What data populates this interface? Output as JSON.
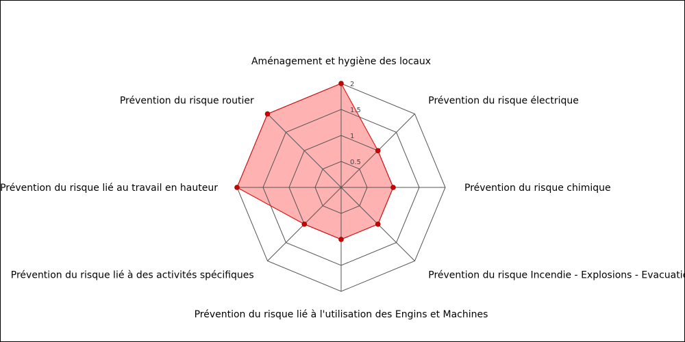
{
  "chart_data": {
    "type": "radar",
    "axes": [
      "Aménagement et hygiène des locaux",
      "Prévention du risque électrique",
      "Prévention du risque chimique",
      "Prévention du risque Incendie - Explosions - Evacuation",
      "Prévention du risque lié à l'utilisation des Engins et Machines",
      "Prévention du risque lié à des activités spécifiques",
      "Prévention du risque lié au travail en hauteur",
      "Prévention du risque routier"
    ],
    "series": [
      {
        "values": [
          2,
          1,
          1,
          1,
          1,
          1,
          2,
          2
        ]
      }
    ],
    "rlim": [
      0,
      2
    ],
    "ticks": [
      0.5,
      1,
      1.5,
      2
    ],
    "tick_labels": [
      "0.5",
      "1",
      "1.5",
      "2"
    ],
    "grid": true,
    "legend": false,
    "colors": {
      "fill": "#ff6666",
      "line": "#e00000",
      "marker": "#cc0000",
      "grid": "#555555"
    }
  }
}
